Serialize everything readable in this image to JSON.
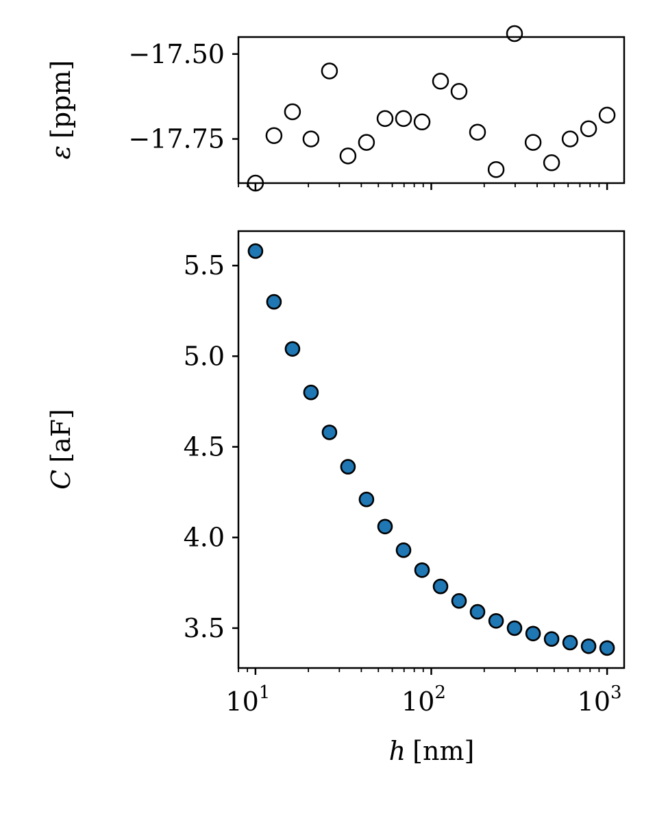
{
  "chart_data": [
    {
      "type": "scatter",
      "xscale": "log",
      "xlim": [
        8,
        1250
      ],
      "ylim": [
        -17.88,
        -17.45
      ],
      "ylabel_symbol": "ε",
      "ylabel_unit": "[ppm]",
      "yticks": [
        -17.5,
        -17.75
      ],
      "ytick_labels": [
        "−17.50",
        "−17.75"
      ],
      "marker_face": "#ffffff",
      "marker_edge": "#000000",
      "grid": false,
      "series": [
        {
          "x": [
            10,
            12.74,
            16.24,
            20.69,
            26.37,
            33.6,
            42.81,
            54.55,
            69.52,
            88.59,
            112.9,
            143.8,
            183.3,
            233.6,
            297.6,
            379.3,
            483.3,
            615.8,
            784.8,
            1000
          ],
          "values": [
            -17.88,
            -17.74,
            -17.67,
            -17.75,
            -17.55,
            -17.8,
            -17.76,
            -17.69,
            -17.69,
            -17.7,
            -17.58,
            -17.61,
            -17.73,
            -17.84,
            -17.44,
            -17.76,
            -17.82,
            -17.75,
            -17.72,
            -17.68
          ]
        }
      ]
    },
    {
      "type": "scatter",
      "xscale": "log",
      "xlim": [
        8,
        1250
      ],
      "ylim": [
        3.28,
        5.69
      ],
      "xlabel_symbol": "h",
      "xlabel_unit": "[nm]",
      "ylabel_symbol": "C",
      "ylabel_unit": "[aF]",
      "xticks": [
        10,
        100,
        1000
      ],
      "xtick_base": [
        "10",
        "10",
        "10"
      ],
      "xtick_exp": [
        "1",
        "2",
        "3"
      ],
      "yticks": [
        3.5,
        4.0,
        4.5,
        5.0,
        5.5
      ],
      "ytick_labels": [
        "3.5",
        "4.0",
        "4.5",
        "5.0",
        "5.5"
      ],
      "marker_face": "#1f77b4",
      "marker_edge": "#000000",
      "grid": false,
      "series": [
        {
          "x": [
            10,
            12.74,
            16.24,
            20.69,
            26.37,
            33.6,
            42.81,
            54.55,
            69.52,
            88.59,
            112.9,
            143.8,
            183.3,
            233.6,
            297.6,
            379.3,
            483.3,
            615.8,
            784.8,
            1000
          ],
          "values": [
            5.58,
            5.3,
            5.04,
            4.8,
            4.58,
            4.39,
            4.21,
            4.06,
            3.93,
            3.82,
            3.73,
            3.65,
            3.59,
            3.54,
            3.5,
            3.47,
            3.44,
            3.42,
            3.4,
            3.39
          ]
        }
      ]
    }
  ]
}
